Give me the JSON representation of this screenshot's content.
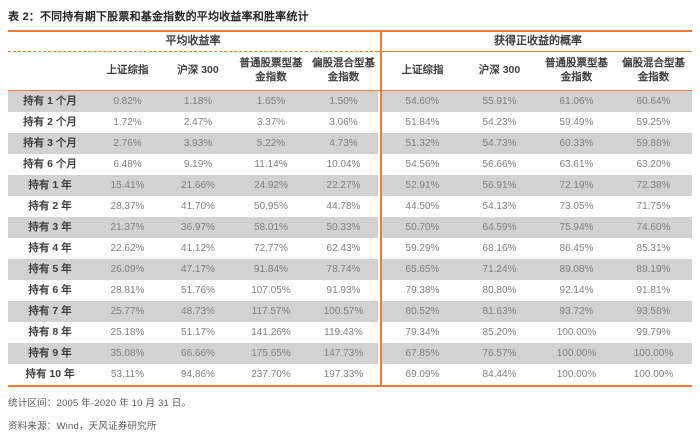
{
  "title": "表 2：不同持有期下股票和基金指数的平均收益率和胜率统计",
  "table": {
    "group_headers": [
      "平均收益率",
      "获得正收益的概率"
    ],
    "sub_headers": [
      "上证综指",
      "沪深 300",
      "普通股票型基金指数",
      "偏股混合型基金指数"
    ],
    "rows": [
      {
        "label": "持有 1 个月",
        "avg": [
          "0.82%",
          "1.18%",
          "1.65%",
          "1.50%"
        ],
        "win": [
          "54.60%",
          "55.91%",
          "61.06%",
          "60.64%"
        ]
      },
      {
        "label": "持有 2 个月",
        "avg": [
          "1.72%",
          "2.47%",
          "3.37%",
          "3.06%"
        ],
        "win": [
          "51.84%",
          "54.23%",
          "59.49%",
          "59.25%"
        ]
      },
      {
        "label": "持有 3 个月",
        "avg": [
          "2.76%",
          "3.93%",
          "5.22%",
          "4.73%"
        ],
        "win": [
          "51.32%",
          "54.73%",
          "60.33%",
          "59.88%"
        ]
      },
      {
        "label": "持有 6 个月",
        "avg": [
          "6.48%",
          "9.19%",
          "11.14%",
          "10.04%"
        ],
        "win": [
          "54.56%",
          "56.66%",
          "63.61%",
          "63.20%"
        ]
      },
      {
        "label": "持有 1 年",
        "avg": [
          "15.41%",
          "21.66%",
          "24.92%",
          "22.27%"
        ],
        "win": [
          "52.91%",
          "56.91%",
          "72.19%",
          "72.38%"
        ]
      },
      {
        "label": "持有 2 年",
        "avg": [
          "28.37%",
          "41.70%",
          "50.95%",
          "44.78%"
        ],
        "win": [
          "44.50%",
          "54.13%",
          "73.05%",
          "71.75%"
        ]
      },
      {
        "label": "持有 3 年",
        "avg": [
          "21.37%",
          "36.97%",
          "58.01%",
          "50.33%"
        ],
        "win": [
          "50.70%",
          "64.59%",
          "75.94%",
          "74.60%"
        ]
      },
      {
        "label": "持有 4 年",
        "avg": [
          "22.62%",
          "41.12%",
          "72.77%",
          "62.43%"
        ],
        "win": [
          "59.29%",
          "68.16%",
          "86.45%",
          "85.31%"
        ]
      },
      {
        "label": "持有 5 年",
        "avg": [
          "26.09%",
          "47.17%",
          "91.84%",
          "78.74%"
        ],
        "win": [
          "65.65%",
          "71.24%",
          "89.08%",
          "89.19%"
        ]
      },
      {
        "label": "持有 6 年",
        "avg": [
          "28.81%",
          "51.76%",
          "107.05%",
          "91.93%"
        ],
        "win": [
          "79.38%",
          "80.80%",
          "92.14%",
          "91.81%"
        ]
      },
      {
        "label": "持有 7 年",
        "avg": [
          "25.77%",
          "48.73%",
          "117.57%",
          "100.57%"
        ],
        "win": [
          "80.52%",
          "81.63%",
          "93.72%",
          "93.58%"
        ]
      },
      {
        "label": "持有 8 年",
        "avg": [
          "25.18%",
          "51.17%",
          "141.26%",
          "119.43%"
        ],
        "win": [
          "79.34%",
          "85.20%",
          "100.00%",
          "99.79%"
        ]
      },
      {
        "label": "持有 9 年",
        "avg": [
          "35.08%",
          "66.66%",
          "175.65%",
          "147.73%"
        ],
        "win": [
          "67.85%",
          "76.57%",
          "100.00%",
          "100.00%"
        ]
      },
      {
        "label": "持有 10 年",
        "avg": [
          "53.11%",
          "94.86%",
          "237.70%",
          "197.33%"
        ],
        "win": [
          "69.09%",
          "84.44%",
          "100.00%",
          "100.00%"
        ]
      }
    ]
  },
  "footnotes": [
    "统计区间：2005 年-2020 年 10 月 31 日。",
    "资料来源：Wind，天风证券研究所"
  ],
  "colors": {
    "accent": "#ED7D31",
    "stripe": "#D2D2D2",
    "header_text": "#3F3F3F",
    "value_text": "#7F7F7F",
    "footnote_text": "#595959"
  }
}
